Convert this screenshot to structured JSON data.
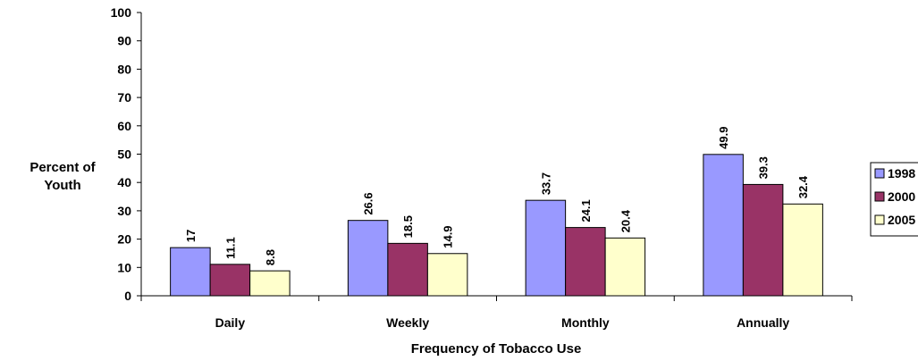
{
  "chart_data": {
    "type": "bar",
    "title": "",
    "xlabel": "Frequency of Tobacco Use",
    "ylabel": [
      "Percent of",
      "Youth"
    ],
    "ylim": [
      0,
      100
    ],
    "yticks": [
      0,
      10,
      20,
      30,
      40,
      50,
      60,
      70,
      80,
      90,
      100
    ],
    "categories": [
      "Daily",
      "Weekly",
      "Monthly",
      "Annually"
    ],
    "series": [
      {
        "name": "1998",
        "color": "#9999ff",
        "values": [
          17,
          26.6,
          33.7,
          49.9
        ],
        "labels": [
          "17",
          "26.6",
          "33.7",
          "49.9"
        ]
      },
      {
        "name": "2000",
        "color": "#993366",
        "values": [
          11.1,
          18.5,
          24.1,
          39.3
        ],
        "labels": [
          "11.1",
          "18.5",
          "24.1",
          "39.3"
        ]
      },
      {
        "name": "2005",
        "color": "#ffffcc",
        "values": [
          8.8,
          14.9,
          20.4,
          32.4
        ],
        "labels": [
          "8.8",
          "14.9",
          "20.4",
          "32.4"
        ]
      }
    ],
    "grid": false,
    "legend": "right"
  }
}
